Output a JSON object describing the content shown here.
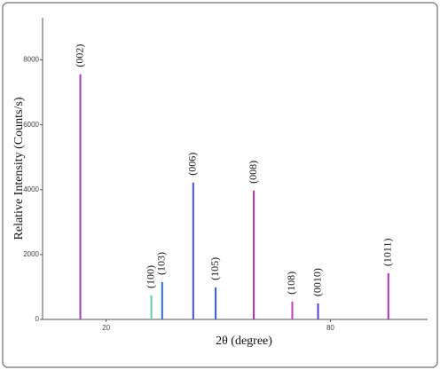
{
  "chart_data": {
    "type": "xrd",
    "x_label": "2θ (degree)",
    "y_label": "Relative Intensity (Counts/s)",
    "xlim": [
      3,
      106
    ],
    "ylim": [
      0,
      9300
    ],
    "xticks": [
      20,
      80
    ],
    "yticks": [
      0,
      2000,
      4000,
      6000,
      8000
    ],
    "peaks": [
      {
        "label": "(002)",
        "x": 13.1,
        "value": 7560,
        "color": "#a040c0"
      },
      {
        "label": "(100)",
        "x": 32.1,
        "value": 740,
        "color": "#60d0a0"
      },
      {
        "label": "(103)",
        "x": 35.0,
        "value": 1150,
        "color": "#3070c0"
      },
      {
        "label": "(006)",
        "x": 43.3,
        "value": 4220,
        "color": "#4050e0"
      },
      {
        "label": "(105)",
        "x": 49.3,
        "value": 990,
        "color": "#3060d0"
      },
      {
        "label": "(008)",
        "x": 59.5,
        "value": 3970,
        "color": "#b030b0"
      },
      {
        "label": "(108)",
        "x": 69.8,
        "value": 550,
        "color": "#c040c0"
      },
      {
        "label": "(0010)",
        "x": 76.7,
        "value": 490,
        "color": "#5040d0"
      },
      {
        "label": "(1011)",
        "x": 95.5,
        "value": 1420,
        "color": "#b030b0"
      }
    ]
  }
}
